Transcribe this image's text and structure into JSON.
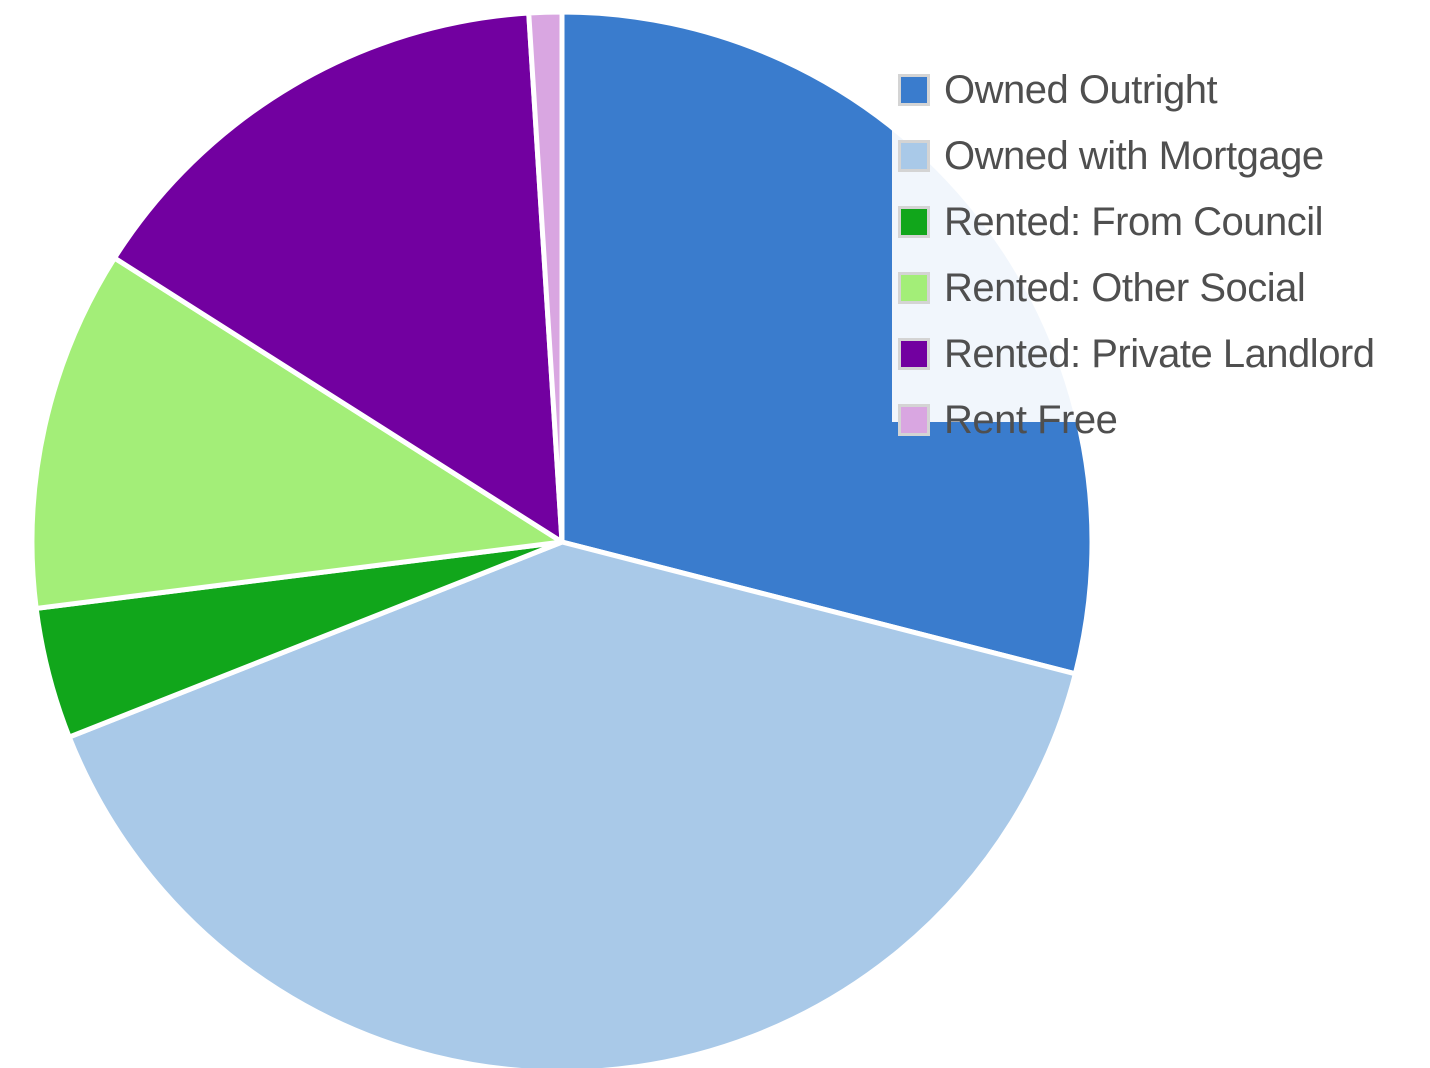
{
  "chart_data": {
    "type": "pie",
    "title": "",
    "labels": [
      "Owned Outright",
      "Owned with Mortgage",
      "Rented: From Council",
      "Rented: Other Social",
      "Rented: Private Landlord",
      "Rent Free"
    ],
    "values": [
      29.0,
      40.0,
      4.0,
      11.0,
      15.0,
      1.0
    ],
    "value_unit": "%",
    "colors": [
      "#3a7ccd",
      "#a9c9e8",
      "#11a61b",
      "#a3ee78",
      "#7200a0",
      "#d9a6e1"
    ],
    "start_angle_deg": 0,
    "direction": "clockwise",
    "legend_position": "top-right",
    "legend_overlaps_chart": true
  }
}
